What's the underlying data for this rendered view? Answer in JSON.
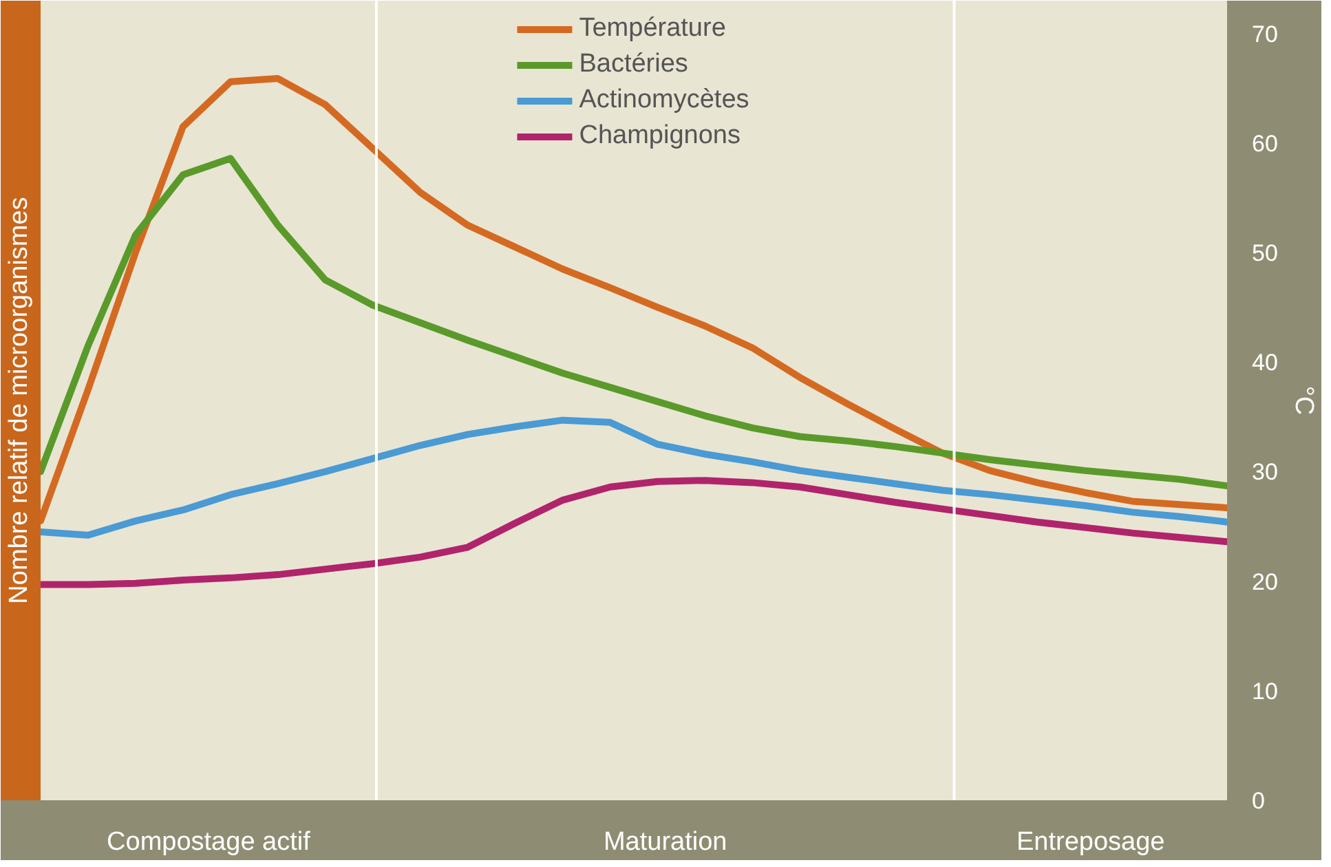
{
  "chart_data": {
    "type": "line",
    "ylabel": "Nombre relatif de microorganismes",
    "y2label": "°C",
    "categories": [
      null,
      null,
      null,
      null,
      null,
      null,
      null,
      null,
      null,
      null,
      null,
      null,
      null,
      null,
      null,
      null,
      null,
      null,
      null,
      null,
      null,
      null,
      null,
      null,
      null,
      null
    ],
    "annotations": [
      "Compostage actif",
      "Maturation",
      "Entreposage"
    ],
    "ylim": [
      0,
      73
    ],
    "yticks": [
      0,
      10,
      20,
      30,
      40,
      50,
      60,
      70
    ],
    "legend": "top",
    "grid": false,
    "line_style": "solid",
    "marker": "none",
    "series": [
      {
        "name": "Température",
        "color": "#d46a22",
        "values": [
          25.5,
          37.5,
          50,
          61.5,
          65.6,
          65.9,
          63.5,
          59.5,
          55.5,
          52.5,
          50.5,
          48.5,
          46.8,
          45,
          43.3,
          41.3,
          38.6,
          36.2,
          33.9,
          31.7,
          30.1,
          29.0,
          28.1,
          27.3,
          27,
          26.7
        ]
      },
      {
        "name": "Bactéries",
        "color": "#5a9a2a",
        "values": [
          30,
          41.5,
          51.6,
          57.1,
          58.6,
          52.5,
          47.5,
          45.2,
          43.6,
          42,
          40.5,
          39,
          37.7,
          36.4,
          35.1,
          34,
          33.2,
          32.8,
          32.3,
          31.7,
          31.1,
          30.6,
          30.1,
          29.7,
          29.3,
          28.7
        ]
      },
      {
        "name": "Actinomycètes",
        "color": "#4a9ad4",
        "values": [
          24.5,
          24.2,
          25.5,
          26.5,
          27.9,
          28.9,
          30,
          31.2,
          32.4,
          33.4,
          34.1,
          34.7,
          34.5,
          32.5,
          31.6,
          30.9,
          30.1,
          29.5,
          28.9,
          28.3,
          27.9,
          27.4,
          26.9,
          26.3,
          25.9,
          25.4
        ]
      },
      {
        "name": "Champignons",
        "color": "#b0246c",
        "values": [
          19.7,
          19.7,
          19.8,
          20.1,
          20.3,
          20.6,
          21.1,
          21.6,
          22.2,
          23.1,
          25.3,
          27.4,
          28.6,
          29.1,
          29.2,
          29,
          28.6,
          27.9,
          27.2,
          26.6,
          26,
          25.4,
          24.9,
          24.4,
          24,
          23.6
        ]
      }
    ]
  }
}
